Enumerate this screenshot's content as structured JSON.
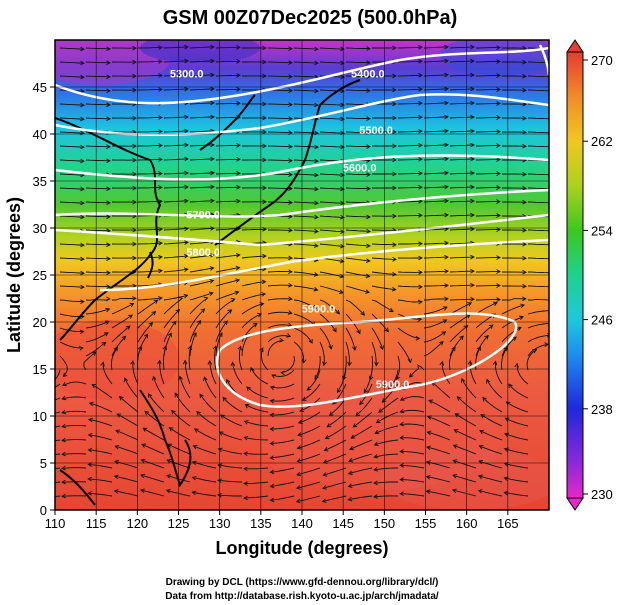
{
  "title": "GSM 00Z07Dec2025 (500.0hPa)",
  "xlabel": "Longitude (degrees)",
  "ylabel": "Latitude  (degrees)",
  "credits": [
    "Drawing by DCL (https://www.gfd-dennou.org/library/dcl/)",
    "Data from http://database.rish.kyoto-u.ac.jp/arch/jmadata/"
  ],
  "x_ticks": [
    "110",
    "115",
    "120",
    "125",
    "130",
    "135",
    "140",
    "145",
    "150",
    "155",
    "160",
    "165"
  ],
  "y_ticks": [
    "0",
    "5",
    "10",
    "15",
    "20",
    "25",
    "30",
    "35",
    "40",
    "45"
  ],
  "colorbar": {
    "ticks": [
      "230",
      "238",
      "246",
      "254",
      "262",
      "270"
    ],
    "min": 230,
    "max": 270
  },
  "contour_labels": [
    {
      "text": "5300.0",
      "lon": 126,
      "lat": 46
    },
    {
      "text": "5400.0",
      "lon": 148,
      "lat": 46
    },
    {
      "text": "5500.0",
      "lon": 149,
      "lat": 40
    },
    {
      "text": "5600.0",
      "lon": 147,
      "lat": 36
    },
    {
      "text": "5700.0",
      "lon": 128,
      "lat": 31
    },
    {
      "text": "5800.0",
      "lon": 128,
      "lat": 27
    },
    {
      "text": "5900.0",
      "lon": 142,
      "lat": 21
    },
    {
      "text": "5900.0",
      "lon": 151,
      "lat": 13
    }
  ],
  "map": {
    "lon_range": [
      110,
      170
    ],
    "lat_range": [
      0,
      50
    ],
    "field": "temperature (K) shaded, geopotential height contours, streamlines"
  }
}
